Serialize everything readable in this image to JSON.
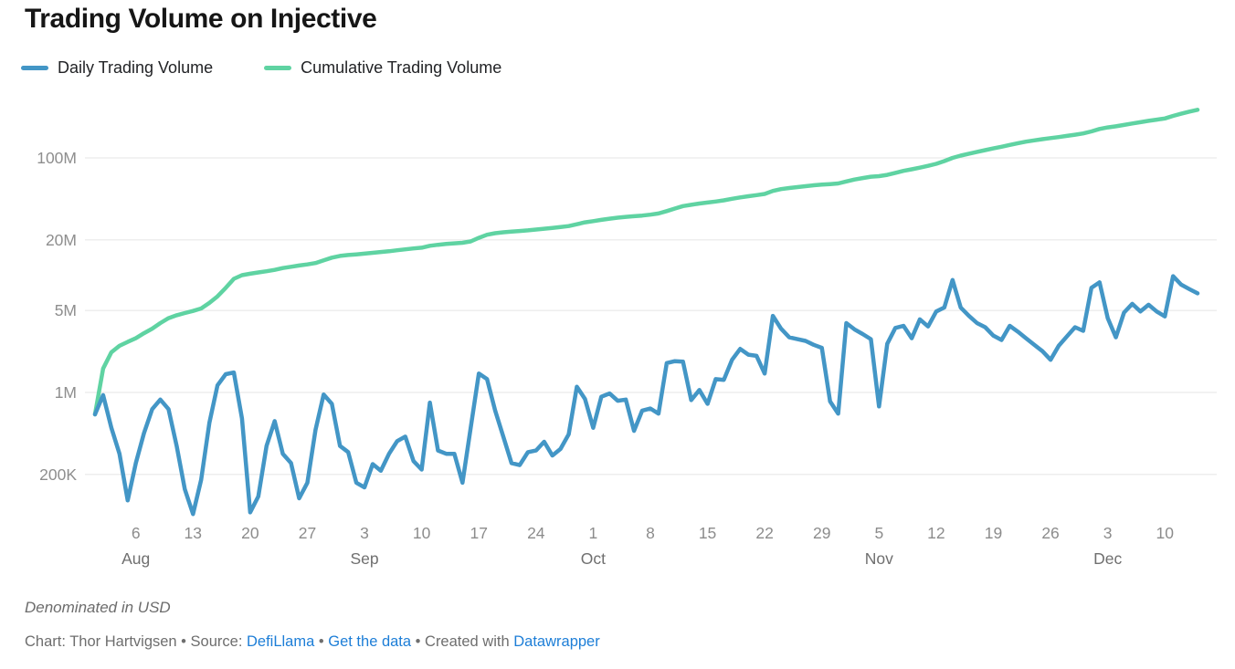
{
  "title": "Trading Volume on Injective",
  "legend": {
    "items": [
      {
        "label": "Daily Trading Volume",
        "color": "#4396c6"
      },
      {
        "label": "Cumulative Trading Volume",
        "color": "#5fd3a2"
      }
    ]
  },
  "footer": {
    "note": "Denominated in USD",
    "credit_prefix": "Chart: Thor Hartvigsen • Source: ",
    "source_link": "DefiLlama",
    "sep1": " • ",
    "data_link": "Get the data",
    "sep2": " • Created with ",
    "tool_link": "Datawrapper"
  },
  "chart_data": {
    "type": "line",
    "title": "Trading Volume on Injective",
    "unit": "USD",
    "y_scale": "log",
    "grid": true,
    "legend_position": "top-left",
    "colors": {
      "gridline": "#e9e9e9",
      "y_label": "#8e8e8e",
      "x_day_label": "#8c8c8c",
      "x_month_label": "#6f6f6f"
    },
    "y_axis": {
      "ticks": [
        {
          "label": "100M",
          "value": 100
        },
        {
          "label": "20M",
          "value": 20
        },
        {
          "label": "5M",
          "value": 5
        },
        {
          "label": "1M",
          "value": 1
        },
        {
          "label": "200K",
          "value": 0.2
        }
      ]
    },
    "x_axis": {
      "start": "Aug 1",
      "end": "Dec 14",
      "ticks": [
        {
          "index": 5,
          "day": "6",
          "month": "Aug"
        },
        {
          "index": 12,
          "day": "13"
        },
        {
          "index": 19,
          "day": "20"
        },
        {
          "index": 26,
          "day": "27"
        },
        {
          "index": 33,
          "day": "3",
          "month": "Sep"
        },
        {
          "index": 40,
          "day": "10"
        },
        {
          "index": 47,
          "day": "17"
        },
        {
          "index": 54,
          "day": "24"
        },
        {
          "index": 61,
          "day": "1",
          "month": "Oct"
        },
        {
          "index": 68,
          "day": "8"
        },
        {
          "index": 75,
          "day": "15"
        },
        {
          "index": 82,
          "day": "22"
        },
        {
          "index": 89,
          "day": "29"
        },
        {
          "index": 96,
          "day": "5",
          "month": "Nov"
        },
        {
          "index": 103,
          "day": "12"
        },
        {
          "index": 110,
          "day": "19"
        },
        {
          "index": 117,
          "day": "26"
        },
        {
          "index": 124,
          "day": "3",
          "month": "Dec"
        },
        {
          "index": 131,
          "day": "10"
        }
      ]
    },
    "series": [
      {
        "name": "Daily Trading Volume",
        "color": "#4396c6",
        "values_millions": [
          0.65,
          0.95,
          0.5,
          0.3,
          0.12,
          0.25,
          0.45,
          0.72,
          0.87,
          0.72,
          0.35,
          0.15,
          0.092,
          0.18,
          0.55,
          1.15,
          1.43,
          1.48,
          0.6,
          0.095,
          0.13,
          0.35,
          0.57,
          0.3,
          0.25,
          0.125,
          0.17,
          0.48,
          0.96,
          0.8,
          0.35,
          0.31,
          0.17,
          0.155,
          0.245,
          0.215,
          0.3,
          0.385,
          0.42,
          0.26,
          0.22,
          0.82,
          0.32,
          0.3,
          0.3,
          0.17,
          0.5,
          1.45,
          1.3,
          0.7,
          0.42,
          0.25,
          0.24,
          0.31,
          0.32,
          0.38,
          0.29,
          0.33,
          0.44,
          1.12,
          0.88,
          0.5,
          0.92,
          0.98,
          0.85,
          0.87,
          0.47,
          0.7,
          0.73,
          0.66,
          1.78,
          1.85,
          1.83,
          0.86,
          1.05,
          0.8,
          1.3,
          1.28,
          1.9,
          2.35,
          2.1,
          2.05,
          1.45,
          4.5,
          3.5,
          2.95,
          2.85,
          2.75,
          2.55,
          2.4,
          0.84,
          0.66,
          3.9,
          3.45,
          3.15,
          2.85,
          0.76,
          2.6,
          3.55,
          3.7,
          2.9,
          4.2,
          3.65,
          4.9,
          5.3,
          9.1,
          5.3,
          4.5,
          3.9,
          3.6,
          3.05,
          2.8,
          3.7,
          3.3,
          2.9,
          2.55,
          2.25,
          1.9,
          2.5,
          3.0,
          3.6,
          3.35,
          7.8,
          8.7,
          4.3,
          2.95,
          4.8,
          5.7,
          4.9,
          5.6,
          4.9,
          4.45,
          9.8,
          8.3,
          7.6,
          7.0
        ]
      },
      {
        "name": "Cumulative Trading Volume",
        "color": "#5fd3a2",
        "values_millions": [
          0.65,
          1.6,
          2.2,
          2.5,
          2.7,
          2.9,
          3.2,
          3.5,
          3.9,
          4.3,
          4.55,
          4.75,
          4.95,
          5.2,
          5.8,
          6.6,
          7.8,
          9.3,
          10.0,
          10.3,
          10.55,
          10.8,
          11.1,
          11.5,
          11.8,
          12.1,
          12.35,
          12.7,
          13.4,
          14.1,
          14.6,
          14.85,
          15.05,
          15.25,
          15.5,
          15.75,
          16.0,
          16.3,
          16.6,
          16.9,
          17.15,
          17.8,
          18.15,
          18.45,
          18.7,
          18.9,
          19.4,
          20.8,
          22.1,
          22.8,
          23.2,
          23.5,
          23.8,
          24.1,
          24.5,
          24.9,
          25.3,
          25.7,
          26.2,
          27.2,
          28.2,
          28.9,
          29.6,
          30.3,
          30.9,
          31.4,
          31.8,
          32.2,
          32.8,
          33.6,
          35.2,
          37.0,
          38.8,
          39.8,
          40.8,
          41.6,
          42.5,
          43.5,
          44.8,
          46.0,
          47.1,
          48.1,
          49.3,
          52.3,
          54.2,
          55.4,
          56.4,
          57.4,
          58.4,
          59.2,
          59.8,
          60.6,
          63.0,
          65.4,
          67.3,
          69.1,
          69.9,
          71.7,
          74.5,
          77.5,
          80.0,
          82.5,
          85.5,
          89.0,
          94.0,
          100.0,
          104.5,
          108.5,
          112.5,
          116.5,
          120.5,
          124.5,
          129.0,
          133.5,
          137.5,
          141.0,
          144.5,
          147.5,
          150.5,
          154.0,
          157.5,
          161.5,
          168.0,
          176.5,
          182.0,
          186.0,
          191.0,
          196.5,
          201.5,
          207.0,
          212.0,
          217.0,
          228.0,
          238.0,
          248.0,
          257.0
        ]
      }
    ]
  }
}
